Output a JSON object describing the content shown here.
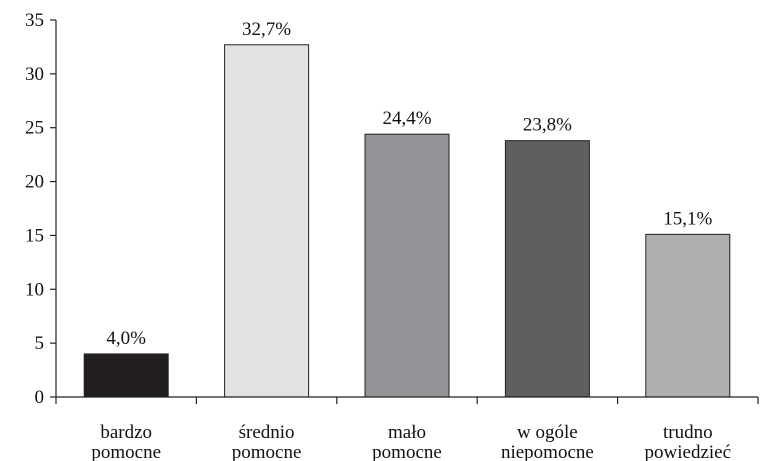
{
  "chart_data": {
    "type": "bar",
    "title": "",
    "xlabel": "",
    "ylabel": "",
    "ylim": [
      0,
      35
    ],
    "yticks": [
      0,
      5,
      10,
      15,
      20,
      25,
      30,
      35
    ],
    "grid": false,
    "legend": "none",
    "categories": [
      [
        "bardzo",
        "pomocne"
      ],
      [
        "średnio",
        "pomocne"
      ],
      [
        "mało",
        "pomocne"
      ],
      [
        "w ogóle",
        "niepomocne"
      ],
      [
        "trudno",
        "powiedzieć"
      ]
    ],
    "values": [
      4.0,
      32.7,
      24.4,
      23.8,
      15.1
    ],
    "data_labels": [
      "4,0%",
      "32,7%",
      "24,4%",
      "23,8%",
      "15,1%"
    ],
    "bar_colors": [
      "#231f20",
      "#e2e2e3",
      "#939497",
      "#5f5f61",
      "#aeafb1"
    ]
  }
}
